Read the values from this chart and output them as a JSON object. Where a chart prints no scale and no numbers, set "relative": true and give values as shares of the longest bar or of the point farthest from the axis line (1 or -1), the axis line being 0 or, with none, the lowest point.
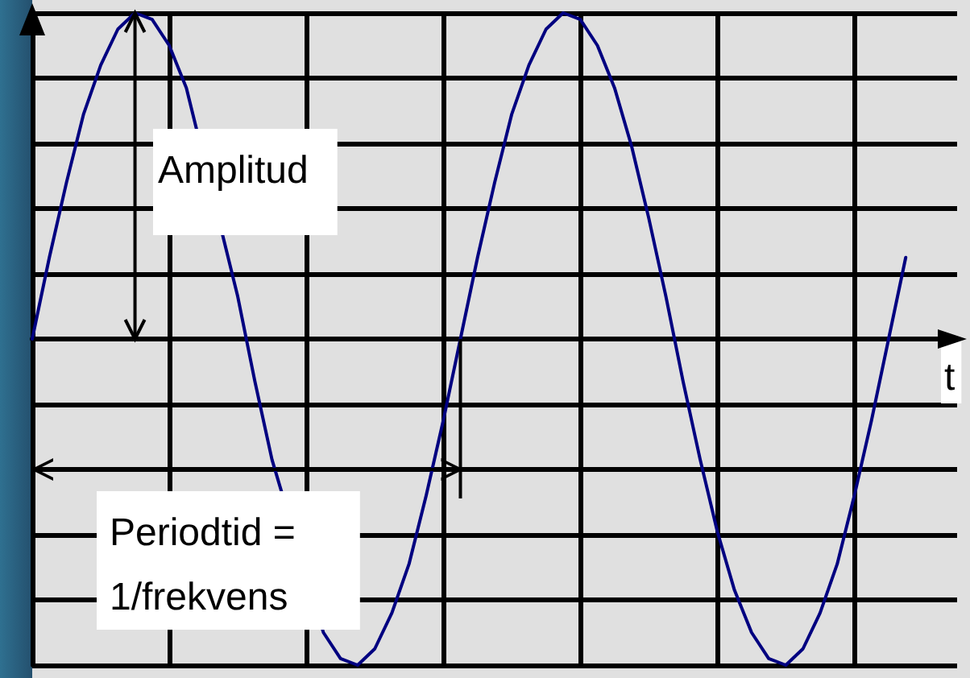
{
  "chart_data": {
    "type": "line",
    "relative": true,
    "xlabel": "t",
    "annotations": [
      "Amplitud",
      "Periodtid =\n1/frekvens"
    ],
    "categories": [
      null,
      null,
      null,
      null,
      null,
      null,
      null,
      null,
      null,
      null,
      null,
      null,
      null,
      null,
      null,
      null,
      null,
      null,
      null,
      null,
      null,
      null,
      null,
      null,
      null,
      null,
      null,
      null,
      null,
      null,
      null,
      null,
      null,
      null,
      null,
      null,
      null,
      null,
      null,
      null,
      null,
      null,
      null,
      null,
      null,
      null,
      null,
      null,
      null,
      null,
      null,
      null,
      null,
      null,
      null
    ],
    "series": [
      {
        "color": "#000080",
        "values": [
          0,
          0.25,
          0.48,
          0.69,
          0.84,
          0.95,
          1,
          0.98,
          0.9,
          0.77,
          null,
          null,
          0.13,
          -0.13,
          -0.37,
          null,
          null,
          -0.9,
          -0.98,
          -1,
          -0.95,
          -0.84,
          -0.69,
          -0.48,
          -0.25,
          0,
          0.25,
          0.48,
          0.69,
          0.84,
          0.95,
          1,
          0.98,
          0.9,
          0.77,
          0.59,
          0.37,
          0.13,
          -0.13,
          -0.37,
          -0.59,
          -0.77,
          -0.9,
          -0.98,
          -1,
          -0.95,
          -0.84,
          -0.69,
          -0.48,
          -0.25,
          0,
          0.25,
          null,
          null,
          null
        ]
      }
    ],
    "grid": true,
    "marker": "none",
    "line_style": "solid"
  }
}
